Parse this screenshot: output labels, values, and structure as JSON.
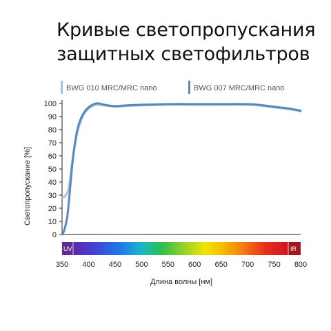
{
  "page": {
    "title_line1": "Кривые светопропускания",
    "title_line2": "защитных светофильтров"
  },
  "chart_data": {
    "type": "line",
    "xlabel": "Длина волны [нм]",
    "ylabel": "Светопропускание [%]",
    "xlim": [
      350,
      800
    ],
    "ylim": [
      0,
      100
    ],
    "x_ticks": [
      350,
      400,
      450,
      500,
      550,
      600,
      650,
      700,
      750,
      800
    ],
    "y_ticks": [
      0,
      10,
      20,
      30,
      40,
      50,
      60,
      70,
      80,
      90,
      100
    ],
    "grid": false,
    "legend_position": "top",
    "spectrum_band": {
      "left_label": "UV",
      "right_label": "IR"
    },
    "series": [
      {
        "name": "BWG 010 MRC/MRC nano",
        "color": "#a9bfdd",
        "x": [
          350,
          355,
          360,
          363,
          366,
          370,
          375,
          380,
          385,
          390,
          395,
          400,
          405,
          410,
          415,
          420,
          430,
          450,
          470,
          500,
          550,
          600,
          650,
          700,
          720,
          740,
          760,
          780,
          800
        ],
        "y": [
          28,
          29,
          32,
          36,
          45,
          58,
          70,
          80,
          86,
          91,
          94,
          96,
          97.5,
          98.5,
          99,
          99,
          98.5,
          97.5,
          98,
          98.5,
          99,
          99,
          99,
          99,
          98.5,
          97.5,
          96.5,
          95.5,
          94
        ]
      },
      {
        "name": "BWG 007 MRC/MRC nano",
        "color": "#5b87bf",
        "x": [
          350,
          353,
          356,
          360,
          364,
          368,
          372,
          376,
          380,
          385,
          390,
          395,
          400,
          405,
          410,
          415,
          420,
          430,
          450,
          470,
          500,
          550,
          600,
          650,
          700,
          720,
          740,
          760,
          780,
          800
        ],
        "y": [
          0,
          2,
          6,
          14,
          30,
          48,
          63,
          74,
          82,
          88,
          92,
          95,
          97,
          98.5,
          99.5,
          100,
          100,
          99,
          98,
          98.5,
          99,
          99.5,
          99.5,
          99.5,
          99.5,
          99,
          98,
          97,
          96,
          94.5
        ]
      }
    ]
  }
}
